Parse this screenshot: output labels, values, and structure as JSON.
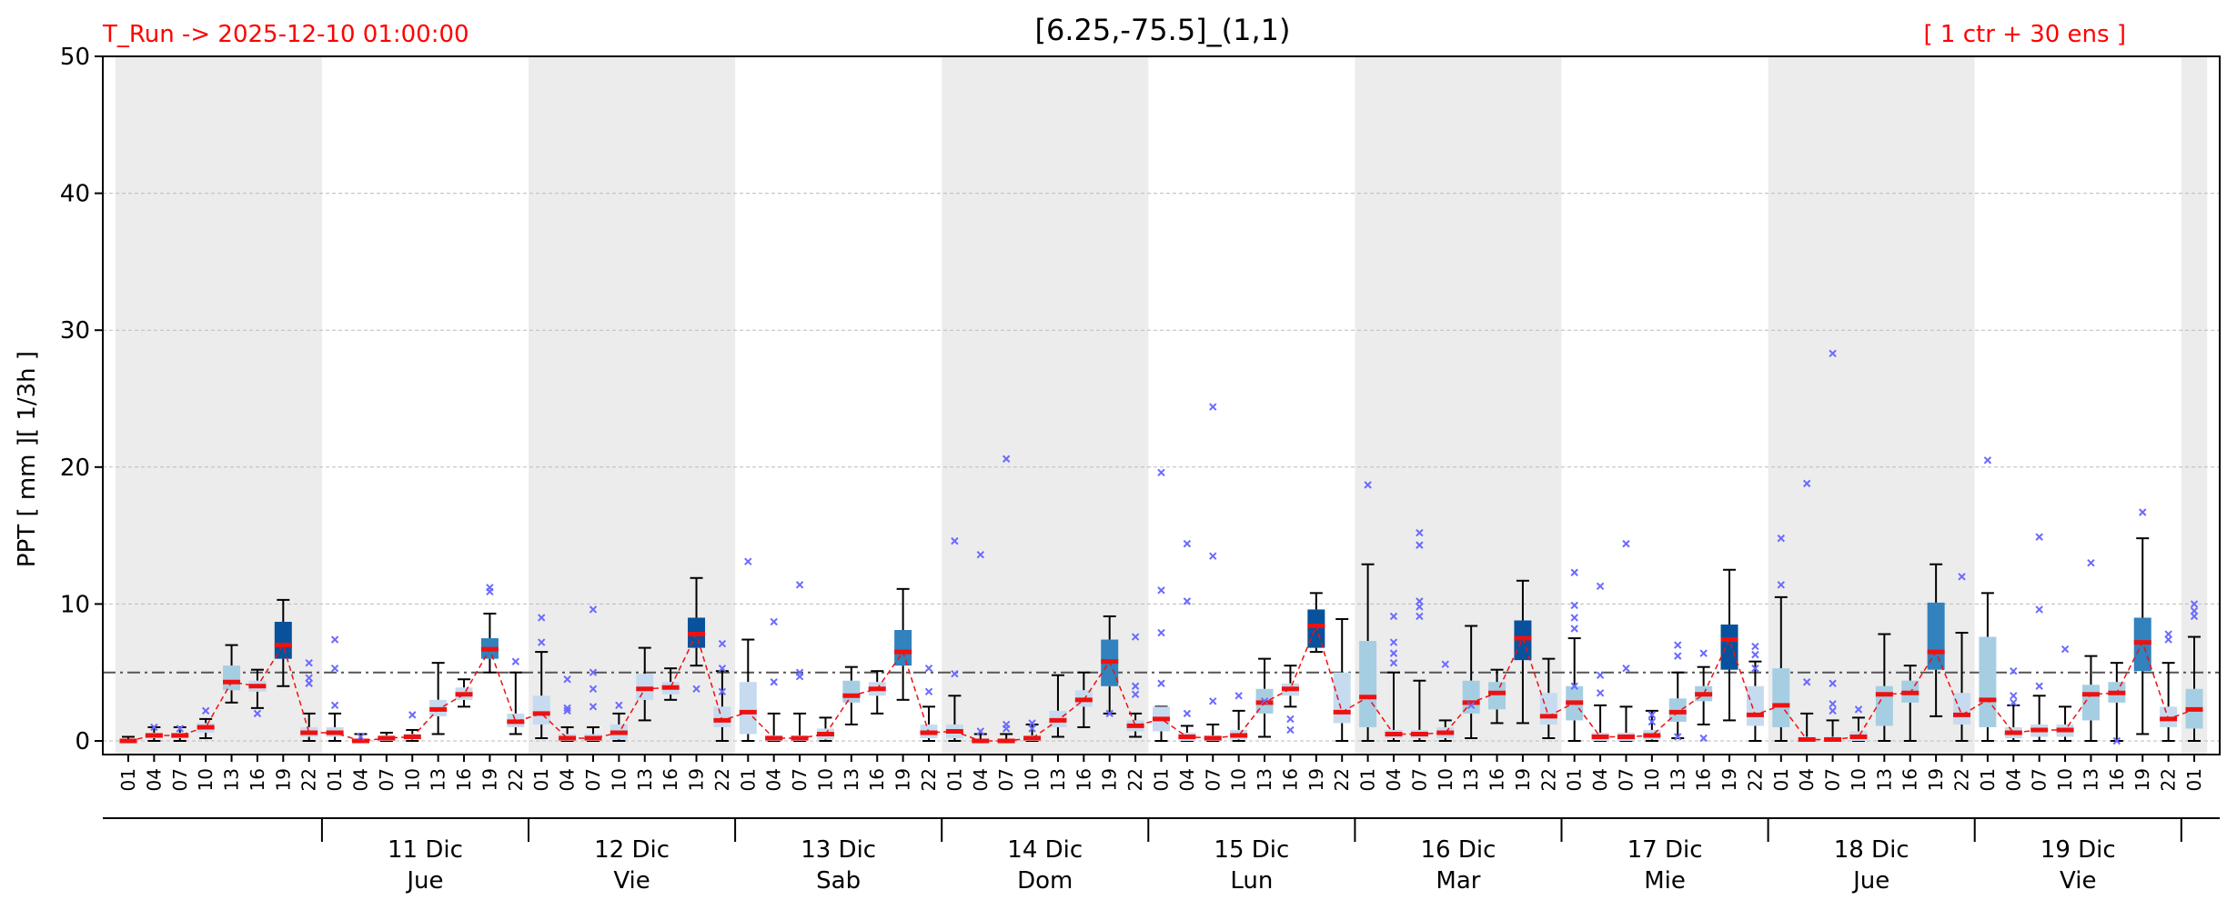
{
  "header": {
    "run_label": "T_Run -> 2025-12-10  01:00:00",
    "title": "[6.25,-75.5]_(1,1)",
    "ens_label": "[ 1 ctr + 30 ens ]"
  },
  "colors": {
    "header_red": "#ff0000",
    "median_red": "#ee1111",
    "shade_gray": "#ececec",
    "box_light": "#a6cee3",
    "box_mid": "#3182bd",
    "box_dark": "#08519c",
    "box_pale": "#c6dbef",
    "outlier": "#6a6aff",
    "threshold": "#555555"
  },
  "chart_data": {
    "type": "box",
    "ylabel": "PPT  [ mm ][ 1/3h ]",
    "ylim": [
      0,
      50
    ],
    "yticks": [
      0,
      10,
      20,
      30,
      40,
      50
    ],
    "grid": true,
    "threshold": 5,
    "x_hours": [
      "01",
      "04",
      "07",
      "10",
      "13",
      "16",
      "19",
      "22",
      "01",
      "04",
      "07",
      "10",
      "13",
      "16",
      "19",
      "22",
      "01",
      "04",
      "07",
      "10",
      "13",
      "16",
      "19",
      "22",
      "01",
      "04",
      "07",
      "10",
      "13",
      "16",
      "19",
      "22",
      "01",
      "04",
      "07",
      "10",
      "13",
      "16",
      "19",
      "22",
      "01",
      "04",
      "07",
      "10",
      "13",
      "16",
      "19",
      "22",
      "01",
      "04",
      "07",
      "10",
      "13",
      "16",
      "19",
      "22",
      "01",
      "04",
      "07",
      "10",
      "13",
      "16",
      "19",
      "22",
      "01",
      "04",
      "07",
      "10",
      "13",
      "16",
      "19",
      "22",
      "01",
      "04",
      "07",
      "10",
      "13",
      "16",
      "19",
      "22",
      "01"
    ],
    "days": [
      {
        "date": "",
        "weekday": "",
        "start": 0,
        "end": 7,
        "shaded": true
      },
      {
        "date": "11 Dic",
        "weekday": "Jue",
        "start": 8,
        "end": 15,
        "shaded": false
      },
      {
        "date": "12 Dic",
        "weekday": "Vie",
        "start": 16,
        "end": 23,
        "shaded": true
      },
      {
        "date": "13 Dic",
        "weekday": "Sab",
        "start": 24,
        "end": 31,
        "shaded": false
      },
      {
        "date": "14 Dic",
        "weekday": "Dom",
        "start": 32,
        "end": 39,
        "shaded": true
      },
      {
        "date": "15 Dic",
        "weekday": "Lun",
        "start": 40,
        "end": 47,
        "shaded": false
      },
      {
        "date": "16 Dic",
        "weekday": "Mar",
        "start": 48,
        "end": 55,
        "shaded": true
      },
      {
        "date": "17 Dic",
        "weekday": "Mie",
        "start": 56,
        "end": 63,
        "shaded": false
      },
      {
        "date": "18 Dic",
        "weekday": "Jue",
        "start": 64,
        "end": 71,
        "shaded": true
      },
      {
        "date": "19 Dic",
        "weekday": "Vie",
        "start": 72,
        "end": 79,
        "shaded": false
      },
      {
        "date": "",
        "weekday": "",
        "start": 80,
        "end": 80,
        "shaded": true
      }
    ],
    "median": [
      0,
      0.4,
      0.4,
      1,
      4.3,
      4,
      7,
      0.6,
      0.6,
      0,
      0.2,
      0.3,
      2.3,
      3.4,
      6.7,
      1.4,
      2,
      0.2,
      0.2,
      0.6,
      3.8,
      3.9,
      7.8,
      1.5,
      2.1,
      0.2,
      0.2,
      0.5,
      3.3,
      3.8,
      6.5,
      0.6,
      0.7,
      0,
      0,
      0.2,
      1.5,
      3,
      5.8,
      1.1,
      1.6,
      0.3,
      0.2,
      0.4,
      2.8,
      3.8,
      8.4,
      2.1,
      3.2,
      0.5,
      0.5,
      0.6,
      2.8,
      3.5,
      7.5,
      1.8,
      2.8,
      0.3,
      0.3,
      0.4,
      2.1,
      3.4,
      7.4,
      1.9,
      2.6,
      0.1,
      0.1,
      0.3,
      3.4,
      3.5,
      6.5,
      1.9,
      3,
      0.6,
      0.8,
      0.8,
      3.4,
      3.5,
      7.2,
      1.6,
      2.3
    ],
    "q1": [
      0,
      0.2,
      0.2,
      0.6,
      3.7,
      3.6,
      6,
      0.3,
      0.3,
      0,
      0,
      0.1,
      1.8,
      3,
      6,
      1,
      1.2,
      0,
      0,
      0.1,
      3,
      3.4,
      6.8,
      1,
      0.5,
      0,
      0,
      0.1,
      2.8,
      3.3,
      5.5,
      0.2,
      0.2,
      0,
      0,
      0,
      1,
      2.5,
      4,
      0.7,
      0.7,
      0,
      0,
      0.1,
      2,
      3.3,
      6.8,
      1.3,
      1,
      0.2,
      0.2,
      0.2,
      2,
      2.3,
      5.9,
      1.2,
      1.5,
      0,
      0,
      0.1,
      1.4,
      2.9,
      5.2,
      1.1,
      1,
      0,
      0,
      0,
      1.1,
      2.8,
      5.2,
      1.2,
      1,
      0.2,
      0.3,
      0.3,
      1.5,
      2.8,
      5.1,
      1,
      0.9
    ],
    "q3": [
      0.1,
      0.6,
      0.6,
      1.3,
      5.5,
      4.4,
      8.7,
      1,
      1,
      0.1,
      0.4,
      0.5,
      3,
      3.9,
      7.5,
      2,
      3.3,
      0.5,
      0.5,
      1.2,
      4.9,
      4.3,
      9,
      2.5,
      4.3,
      0.4,
      0.4,
      0.9,
      4.4,
      4.3,
      8.1,
      1.2,
      1.2,
      0.1,
      0.1,
      0.4,
      2.2,
      3.7,
      7.4,
      1.5,
      2.5,
      0.6,
      0.4,
      0.8,
      3.8,
      4.2,
      9.6,
      5,
      7.3,
      0.8,
      0.8,
      1,
      4.4,
      4.3,
      8.8,
      3.5,
      4,
      0.6,
      0.6,
      0.8,
      3.1,
      4,
      8.5,
      4,
      5.3,
      0.3,
      0.3,
      0.7,
      4,
      4.4,
      10.1,
      3.5,
      7.6,
      1,
      1.2,
      1.2,
      4.1,
      4.3,
      9,
      2.5,
      3.8
    ],
    "whisker_low": [
      0,
      0,
      0,
      0.2,
      2.8,
      2.4,
      4,
      0,
      0,
      0,
      0,
      0,
      0.5,
      2.5,
      5,
      0.5,
      0.2,
      0,
      0,
      0,
      1.5,
      3,
      5.5,
      0,
      0,
      0,
      0,
      0,
      1.2,
      2,
      3,
      0,
      0,
      0,
      0,
      0,
      0.3,
      1,
      2,
      0.3,
      0,
      0,
      0,
      0,
      0.3,
      2.5,
      6.5,
      0,
      0,
      0,
      0,
      0,
      0.2,
      1.3,
      1.3,
      0.2,
      0,
      0,
      0,
      0,
      0.2,
      1.2,
      1.5,
      0,
      0,
      0,
      0,
      0,
      0,
      0,
      1.8,
      0,
      0,
      0,
      0,
      0,
      0,
      0,
      0.5,
      0,
      0
    ],
    "whisker_high": [
      0.3,
      1,
      1,
      1.6,
      7,
      5.2,
      10.3,
      2,
      2,
      0.5,
      0.6,
      0.8,
      5.7,
      4.5,
      9.3,
      5,
      6.5,
      1,
      1,
      2,
      6.8,
      5.3,
      11.9,
      5.1,
      7.4,
      2,
      2,
      1.7,
      5.4,
      5.1,
      11.1,
      2.5,
      3.3,
      0.5,
      0.5,
      1.2,
      4.8,
      5,
      9.1,
      2,
      2.5,
      1.1,
      1.2,
      2.2,
      6,
      5.5,
      10.8,
      8.9,
      12.9,
      5,
      4.4,
      1.5,
      8.4,
      5.2,
      11.7,
      6,
      7.5,
      2.6,
      2.5,
      2.2,
      5,
      5.4,
      12.5,
      5.8,
      10.5,
      2,
      1.5,
      1.7,
      7.8,
      5.5,
      12.9,
      7.9,
      10.8,
      2.6,
      3.3,
      2.5,
      6.2,
      5.7,
      14.8,
      5.7,
      7.6
    ],
    "box_color": [
      "pale",
      "pale",
      "pale",
      "pale",
      "light",
      "pale",
      "dark",
      "pale",
      "pale",
      "pale",
      "pale",
      "pale",
      "pale",
      "pale",
      "mid",
      "pale",
      "pale",
      "pale",
      "pale",
      "pale",
      "pale",
      "pale",
      "dark",
      "pale",
      "pale",
      "pale",
      "pale",
      "pale",
      "light",
      "pale",
      "mid",
      "pale",
      "pale",
      "pale",
      "pale",
      "pale",
      "pale",
      "pale",
      "mid",
      "pale",
      "pale",
      "pale",
      "pale",
      "pale",
      "light",
      "pale",
      "dark",
      "pale",
      "light",
      "pale",
      "pale",
      "pale",
      "light",
      "light",
      "dark",
      "pale",
      "light",
      "pale",
      "pale",
      "pale",
      "light",
      "light",
      "dark",
      "pale",
      "light",
      "pale",
      "pale",
      "pale",
      "light",
      "light",
      "mid",
      "pale",
      "light",
      "pale",
      "pale",
      "pale",
      "light",
      "light",
      "mid",
      "pale",
      "light"
    ],
    "outliers": [
      [
        1,
        1.0
      ],
      [
        2,
        0.9
      ],
      [
        3,
        2.2
      ],
      [
        5,
        2.0
      ],
      [
        7,
        5.7
      ],
      [
        7,
        4.6
      ],
      [
        7,
        4.2
      ],
      [
        8,
        7.4
      ],
      [
        8,
        5.3
      ],
      [
        8,
        2.6
      ],
      [
        9,
        0.3
      ],
      [
        11,
        1.9
      ],
      [
        14,
        11.2
      ],
      [
        14,
        10.9
      ],
      [
        15,
        5.8
      ],
      [
        16,
        9.0
      ],
      [
        16,
        7.2
      ],
      [
        17,
        2.4
      ],
      [
        17,
        2.2
      ],
      [
        17,
        4.5
      ],
      [
        18,
        9.6
      ],
      [
        18,
        5.0
      ],
      [
        18,
        3.8
      ],
      [
        18,
        2.5
      ],
      [
        19,
        2.6
      ],
      [
        22,
        3.8
      ],
      [
        23,
        7.1
      ],
      [
        23,
        5.3
      ],
      [
        23,
        3.6
      ],
      [
        24,
        13.1
      ],
      [
        25,
        8.7
      ],
      [
        25,
        4.3
      ],
      [
        26,
        11.4
      ],
      [
        26,
        5.0
      ],
      [
        26,
        4.7
      ],
      [
        31,
        5.3
      ],
      [
        31,
        3.6
      ],
      [
        32,
        14.6
      ],
      [
        32,
        4.9
      ],
      [
        33,
        13.6
      ],
      [
        33,
        0.7
      ],
      [
        34,
        20.6
      ],
      [
        34,
        1.2
      ],
      [
        34,
        0.9
      ],
      [
        35,
        1.3
      ],
      [
        35,
        0.9
      ],
      [
        38,
        2.0
      ],
      [
        39,
        7.6
      ],
      [
        39,
        4.0
      ],
      [
        39,
        3.4
      ],
      [
        40,
        19.6
      ],
      [
        40,
        11.0
      ],
      [
        40,
        7.9
      ],
      [
        40,
        4.2
      ],
      [
        41,
        14.4
      ],
      [
        41,
        10.2
      ],
      [
        41,
        2.0
      ],
      [
        42,
        24.4
      ],
      [
        42,
        13.5
      ],
      [
        42,
        2.9
      ],
      [
        43,
        3.3
      ],
      [
        44,
        2.9
      ],
      [
        45,
        0.8
      ],
      [
        45,
        1.6
      ],
      [
        48,
        18.7
      ],
      [
        49,
        9.1
      ],
      [
        49,
        7.2
      ],
      [
        49,
        6.4
      ],
      [
        49,
        5.7
      ],
      [
        50,
        15.2
      ],
      [
        50,
        14.3
      ],
      [
        50,
        10.2
      ],
      [
        50,
        9.8
      ],
      [
        50,
        9.1
      ],
      [
        51,
        5.6
      ],
      [
        52,
        2.6
      ],
      [
        56,
        12.3
      ],
      [
        56,
        9.9
      ],
      [
        56,
        9.0
      ],
      [
        56,
        8.2
      ],
      [
        56,
        4.0
      ],
      [
        57,
        11.3
      ],
      [
        57,
        4.8
      ],
      [
        57,
        3.5
      ],
      [
        58,
        14.4
      ],
      [
        58,
        5.3
      ],
      [
        59,
        1.9
      ],
      [
        59,
        1.4
      ],
      [
        60,
        7.0
      ],
      [
        60,
        6.2
      ],
      [
        60,
        0.3
      ],
      [
        61,
        6.4
      ],
      [
        61,
        0.2
      ],
      [
        63,
        6.9
      ],
      [
        63,
        6.3
      ],
      [
        63,
        5.3
      ],
      [
        64,
        14.8
      ],
      [
        64,
        11.4
      ],
      [
        65,
        18.8
      ],
      [
        65,
        4.3
      ],
      [
        66,
        28.3
      ],
      [
        66,
        4.2
      ],
      [
        66,
        2.7
      ],
      [
        66,
        2.2
      ],
      [
        67,
        2.3
      ],
      [
        71,
        12.0
      ],
      [
        72,
        20.5
      ],
      [
        73,
        5.1
      ],
      [
        73,
        3.3
      ],
      [
        73,
        2.8
      ],
      [
        74,
        14.9
      ],
      [
        74,
        9.6
      ],
      [
        74,
        4.0
      ],
      [
        75,
        6.7
      ],
      [
        76,
        13.0
      ],
      [
        77,
        0.0
      ],
      [
        78,
        16.7
      ],
      [
        79,
        7.8
      ],
      [
        79,
        7.4
      ],
      [
        80,
        10.0
      ],
      [
        80,
        9.5
      ],
      [
        80,
        9.1
      ]
    ]
  }
}
